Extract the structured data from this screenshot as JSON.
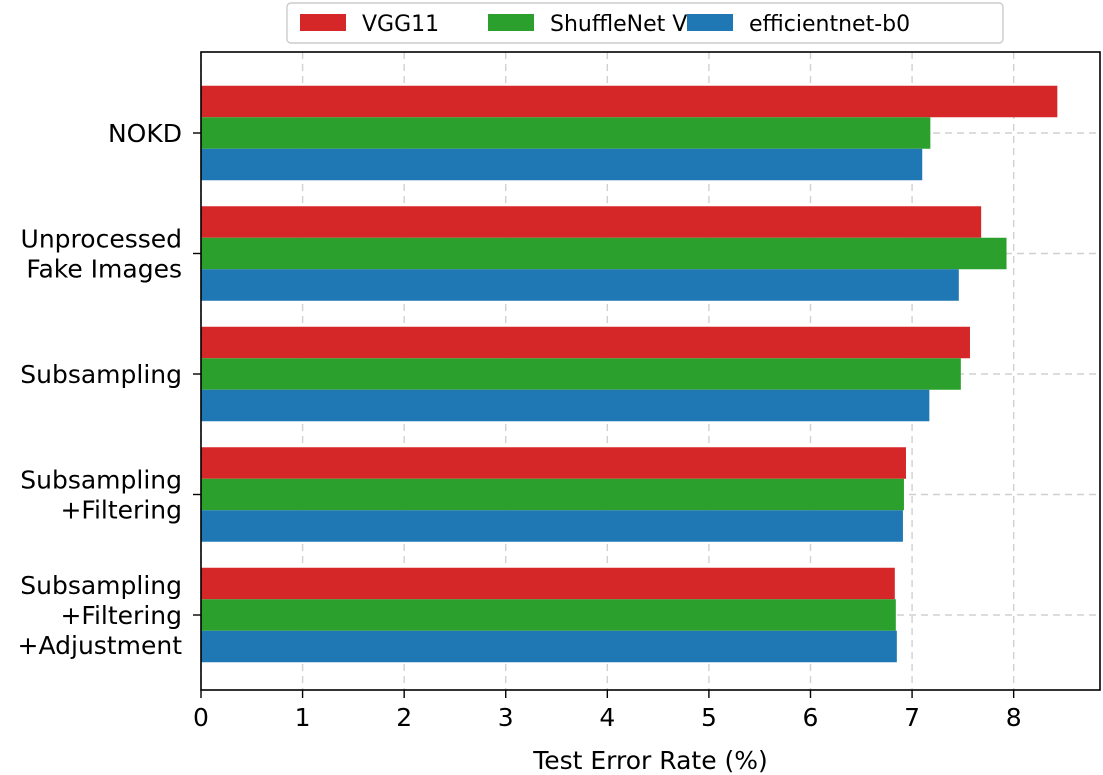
{
  "chart_data": {
    "type": "bar",
    "orientation": "horizontal",
    "categories": [
      [
        "NOKD"
      ],
      [
        "Unprocessed",
        "Fake Images"
      ],
      [
        "Subsampling"
      ],
      [
        "Subsampling",
        "+Filtering"
      ],
      [
        "Subsampling",
        "+Filtering",
        "+Adjustment"
      ]
    ],
    "series": [
      {
        "name": "VGG11",
        "color": "#d62728",
        "values": [
          8.43,
          7.68,
          7.57,
          6.94,
          6.83
        ]
      },
      {
        "name": "ShuffleNet V2",
        "color": "#2ca02c",
        "values": [
          7.18,
          7.93,
          7.48,
          6.92,
          6.84
        ]
      },
      {
        "name": "efficientnet-b0",
        "color": "#1f77b4",
        "values": [
          7.1,
          7.46,
          7.17,
          6.91,
          6.85
        ]
      }
    ],
    "xlabel": "Test Error Rate (%)",
    "ylabel": "",
    "xlim": [
      0,
      8.85
    ],
    "xticks": [
      0,
      1,
      2,
      3,
      4,
      5,
      6,
      7,
      8
    ],
    "grid": true,
    "legend_position": "top"
  }
}
